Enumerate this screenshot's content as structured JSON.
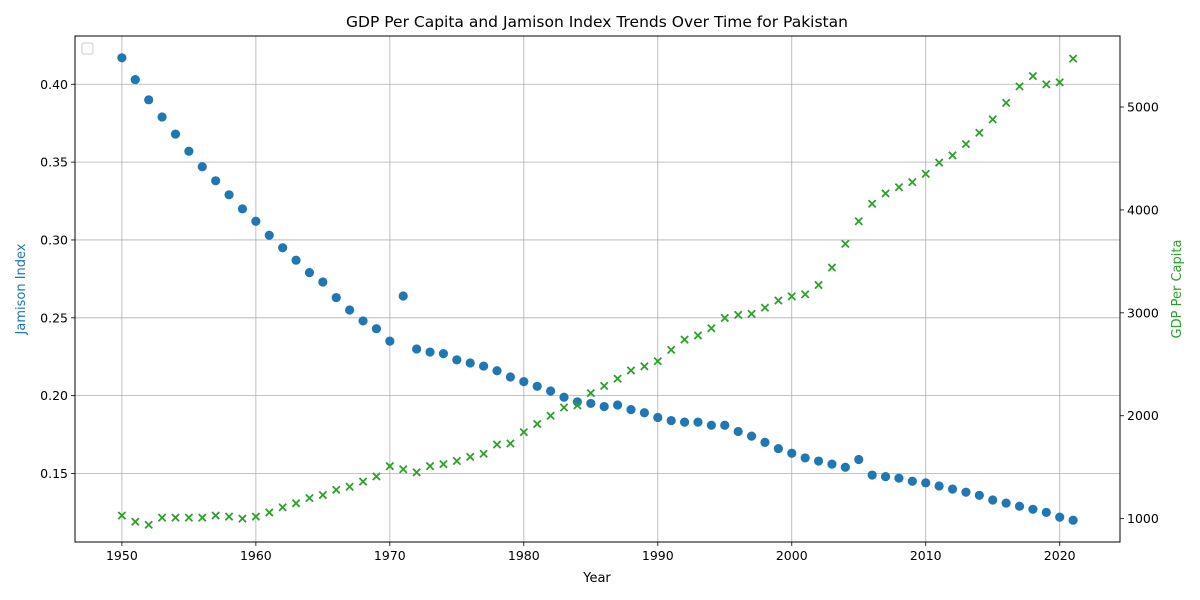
{
  "chart_data": {
    "type": "scatter",
    "title": "GDP Per Capita and Jamison Index Trends Over Time for Pakistan",
    "xlabel": "Year",
    "ylabel_left": "Jamison Index",
    "ylabel_right": "GDP Per Capita",
    "xlim": [
      1946.5,
      2024.5
    ],
    "ylim_left": [
      0.106,
      0.431
    ],
    "ylim_right": [
      773,
      5690
    ],
    "xticks": [
      1950,
      1960,
      1970,
      1980,
      1990,
      2000,
      2010,
      2020
    ],
    "yticks_left": [
      0.15,
      0.2,
      0.25,
      0.3,
      0.35,
      0.4
    ],
    "yticks_right": [
      1000,
      2000,
      3000,
      4000,
      5000
    ],
    "grid": true,
    "legend": "top-left (empty)",
    "colors": {
      "jamison": "#1f77b4",
      "gdp": "#2ca02c"
    },
    "x": [
      1950,
      1951,
      1952,
      1953,
      1954,
      1955,
      1956,
      1957,
      1958,
      1959,
      1960,
      1961,
      1962,
      1963,
      1964,
      1965,
      1966,
      1967,
      1968,
      1969,
      1970,
      1971,
      1972,
      1973,
      1974,
      1975,
      1976,
      1977,
      1978,
      1979,
      1980,
      1981,
      1982,
      1983,
      1984,
      1985,
      1986,
      1987,
      1988,
      1989,
      1990,
      1991,
      1992,
      1993,
      1994,
      1995,
      1996,
      1997,
      1998,
      1999,
      2000,
      2001,
      2002,
      2003,
      2004,
      2005,
      2006,
      2007,
      2008,
      2009,
      2010,
      2011,
      2012,
      2013,
      2014,
      2015,
      2016,
      2017,
      2018,
      2019,
      2020,
      2021
    ],
    "series": [
      {
        "name": "Jamison Index",
        "axis": "left",
        "marker": "circle",
        "values": [
          0.417,
          0.403,
          0.39,
          0.379,
          0.368,
          0.357,
          0.347,
          0.338,
          0.329,
          0.32,
          0.312,
          0.303,
          0.295,
          0.287,
          0.279,
          0.273,
          0.263,
          0.255,
          0.248,
          0.243,
          0.235,
          0.264,
          0.23,
          0.228,
          0.227,
          0.223,
          0.221,
          0.219,
          0.216,
          0.212,
          0.209,
          0.206,
          0.203,
          0.199,
          0.196,
          0.195,
          0.193,
          0.194,
          0.191,
          0.189,
          0.186,
          0.184,
          0.183,
          0.183,
          0.181,
          0.181,
          0.177,
          0.174,
          0.17,
          0.166,
          0.163,
          0.16,
          0.158,
          0.156,
          0.154,
          0.159,
          0.149,
          0.148,
          0.147,
          0.145,
          0.144,
          0.142,
          0.14,
          0.138,
          0.136,
          0.133,
          0.131,
          0.129,
          0.127,
          0.125,
          0.122,
          0.12
        ]
      },
      {
        "name": "GDP Per Capita",
        "axis": "right",
        "marker": "x",
        "values": [
          1030,
          970,
          940,
          1010,
          1010,
          1010,
          1010,
          1030,
          1020,
          1000,
          1020,
          1060,
          1110,
          1150,
          1200,
          1230,
          1280,
          1310,
          1360,
          1410,
          1510,
          1480,
          1450,
          1510,
          1530,
          1560,
          1600,
          1630,
          1720,
          1730,
          1840,
          1920,
          2000,
          2080,
          2100,
          2220,
          2290,
          2360,
          2440,
          2480,
          2530,
          2640,
          2740,
          2780,
          2850,
          2950,
          2980,
          2990,
          3050,
          3120,
          3160,
          3180,
          3270,
          3440,
          3670,
          3890,
          4060,
          4160,
          4220,
          4270,
          4350,
          4460,
          4530,
          4640,
          4750,
          4880,
          5040,
          5200,
          5300,
          5220,
          5240,
          5470
        ]
      }
    ]
  }
}
